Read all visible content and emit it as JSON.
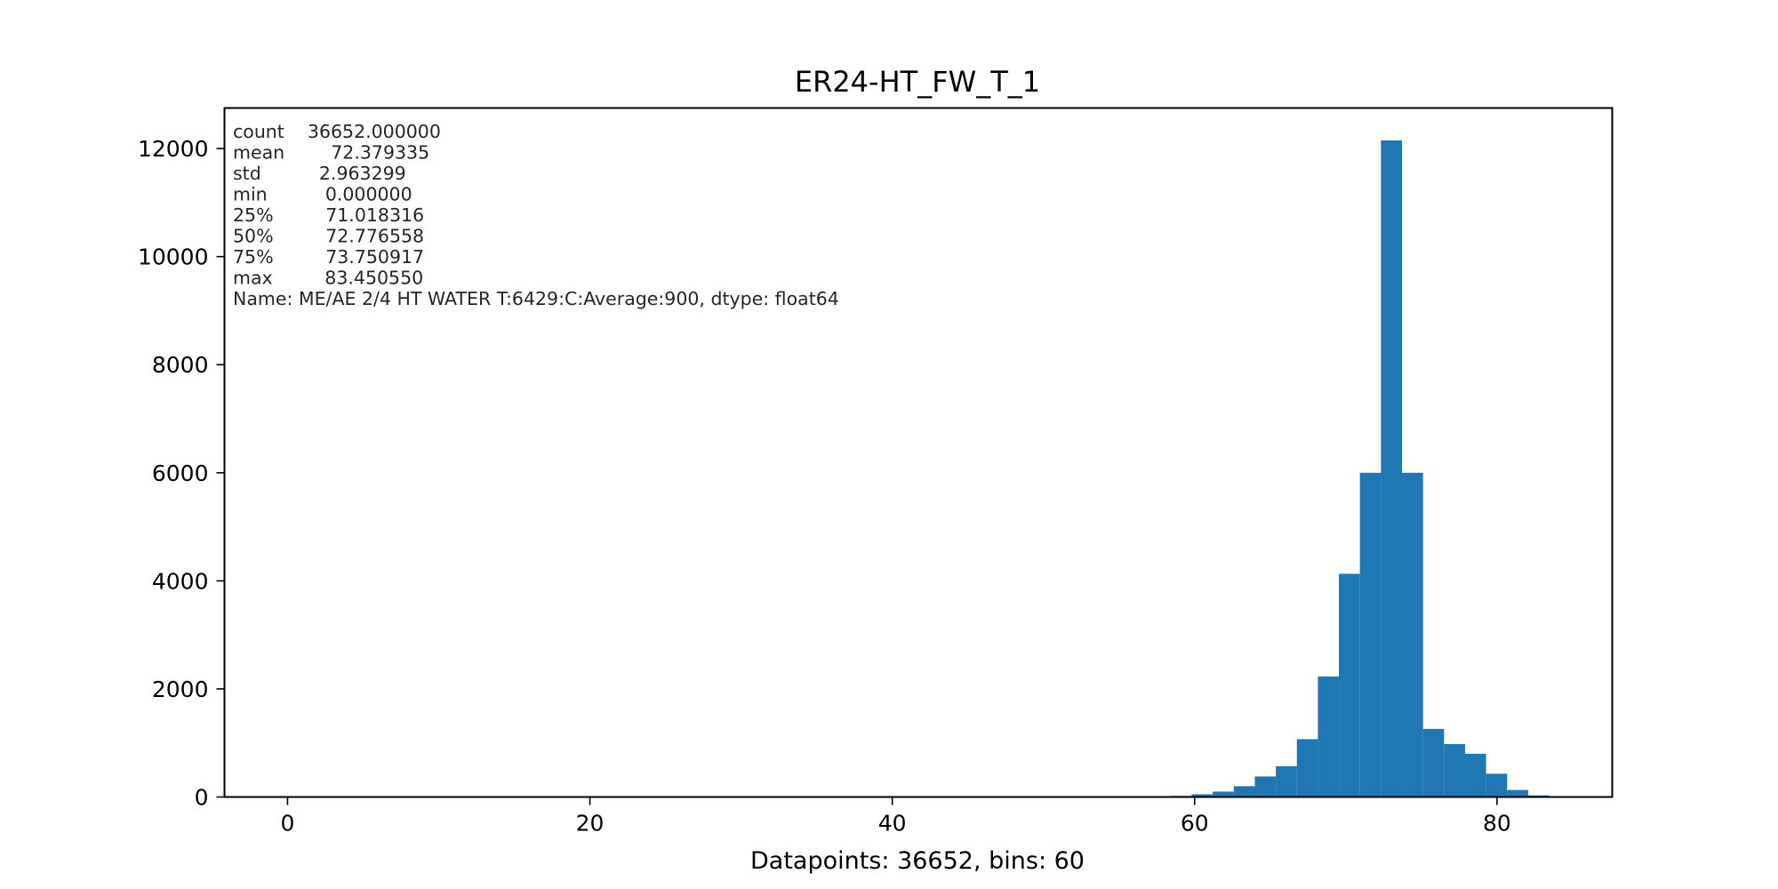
{
  "chart_data": {
    "type": "bar",
    "title": "ER24-HT_FW_T_1",
    "xlabel": "Datapoints: 36652, bins: 60",
    "ylabel": "",
    "xlim": [
      -4.17,
      87.62
    ],
    "ylim": [
      0,
      12750
    ],
    "xticks": [
      0,
      20,
      40,
      60,
      80
    ],
    "yticks": [
      0,
      2000,
      4000,
      6000,
      8000,
      10000,
      12000
    ],
    "grid": false,
    "bar_color": "#1f77b4",
    "bin_start": 0,
    "bin_width": 1.39084,
    "bins": 60,
    "values": [
      1,
      0,
      0,
      0,
      0,
      0,
      0,
      0,
      0,
      0,
      0,
      0,
      0,
      0,
      0,
      0,
      0,
      0,
      0,
      0,
      0,
      0,
      0,
      0,
      0,
      0,
      0,
      0,
      0,
      0,
      0,
      0,
      0,
      0,
      0,
      0,
      0,
      0,
      0,
      0,
      0,
      0,
      20,
      50,
      100,
      200,
      380,
      570,
      1070,
      2230,
      4130,
      6000,
      12150,
      6000,
      1260,
      980,
      800,
      430,
      130,
      30
    ],
    "stats_box": {
      "lines": [
        "count    36652.000000",
        "mean        72.379335",
        "std          2.963299",
        "min          0.000000",
        "25%         71.018316",
        "50%         72.776558",
        "75%         73.750917",
        "max         83.450550",
        "Name: ME/AE 2/4 HT WATER T:6429:C:Average:900, dtype: float64"
      ]
    }
  }
}
